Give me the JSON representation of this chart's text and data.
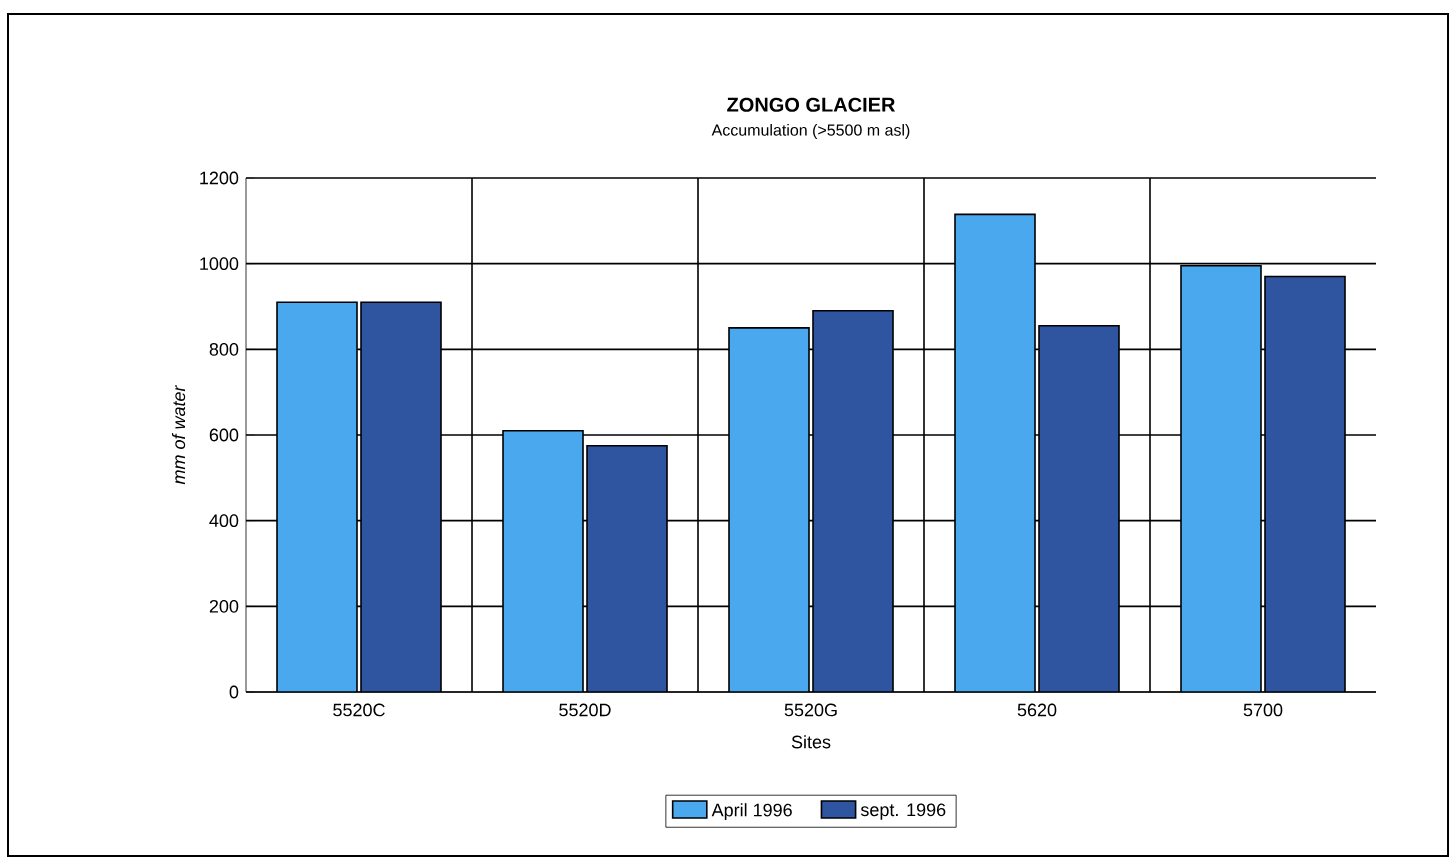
{
  "chart_data": {
    "type": "bar",
    "title": "ZONGO GLACIER",
    "subtitle": "Accumulation (>5500 m asl)",
    "xlabel": "Sites",
    "ylabel": "mm of water",
    "categories": [
      "5520C",
      "5520D",
      "5520G",
      "5620",
      "5700"
    ],
    "series": [
      {
        "name": "April 1996",
        "color": "#4aa8ef",
        "values": [
          910,
          610,
          850,
          1115,
          995
        ]
      },
      {
        "name": "sept. 1996",
        "color": "#2f55a0",
        "values": [
          910,
          575,
          890,
          855,
          970
        ]
      }
    ],
    "ylim": [
      0,
      1200
    ],
    "yticks": [
      0,
      200,
      400,
      600,
      800,
      1000,
      1200
    ],
    "grid": true,
    "legend": "bottom"
  }
}
